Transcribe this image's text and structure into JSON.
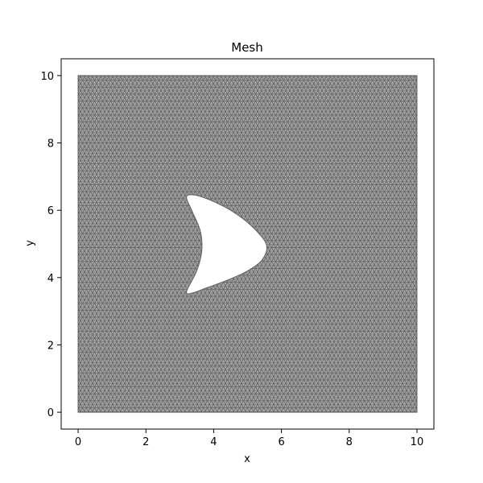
{
  "chart_data": {
    "type": "mesh",
    "title": "Mesh",
    "xlabel": "x",
    "ylabel": "y",
    "xlim": [
      -0.5,
      10.5
    ],
    "ylim": [
      -0.5,
      10.5
    ],
    "xticks": [
      0,
      2,
      4,
      6,
      8,
      10
    ],
    "yticks": [
      0,
      2,
      4,
      6,
      8,
      10
    ],
    "xtick_labels": [
      "0",
      "2",
      "4",
      "6",
      "8",
      "10"
    ],
    "ytick_labels": [
      "0",
      "2",
      "4",
      "6",
      "8",
      "10"
    ],
    "domain": {
      "x": [
        0,
        10
      ],
      "y": [
        0,
        10
      ]
    },
    "hole_boundary": [
      [
        3.2,
        6.4
      ],
      [
        3.45,
        6.45
      ],
      [
        3.9,
        6.3
      ],
      [
        4.5,
        6.0
      ],
      [
        5.1,
        5.55
      ],
      [
        5.55,
        5.0
      ],
      [
        5.45,
        4.55
      ],
      [
        5.0,
        4.2
      ],
      [
        4.35,
        3.9
      ],
      [
        3.8,
        3.7
      ],
      [
        3.4,
        3.55
      ],
      [
        3.2,
        3.58
      ],
      [
        3.5,
        4.2
      ],
      [
        3.65,
        4.8
      ],
      [
        3.6,
        5.4
      ],
      [
        3.35,
        6.0
      ]
    ],
    "edge_color": "#5a5a5a",
    "mesh_fill": "#a3a3a3",
    "grid": false
  }
}
